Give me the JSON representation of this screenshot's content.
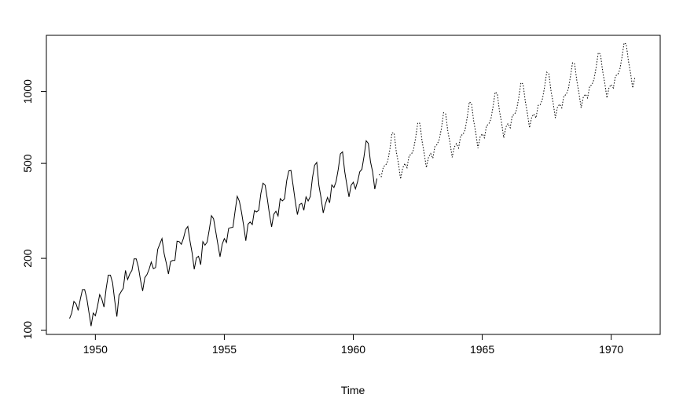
{
  "chart_data": {
    "type": "line",
    "title": "",
    "xlabel": "Time",
    "ylabel": "",
    "y_scale": "log",
    "xlim": [
      1948.1,
      1971.9
    ],
    "ylim": [
      96,
      1720
    ],
    "x_ticks": [
      1950,
      1955,
      1960,
      1965,
      1970
    ],
    "x_tick_labels": [
      "1950",
      "1955",
      "1960",
      "1965",
      "1970"
    ],
    "y_ticks": [
      100,
      200,
      500,
      1000
    ],
    "y_tick_labels": [
      "100",
      "200",
      "500",
      "1000"
    ],
    "grid": false,
    "legend": "none",
    "series": [
      {
        "style": "solid",
        "color": "#000000",
        "start": 1949.0,
        "frequency": 12,
        "values": [
          112,
          118,
          132,
          129,
          121,
          135,
          148,
          148,
          136,
          119,
          104,
          118,
          115,
          126,
          141,
          135,
          125,
          149,
          170,
          170,
          158,
          133,
          114,
          140,
          145,
          150,
          178,
          163,
          172,
          178,
          199,
          199,
          184,
          162,
          146,
          166,
          171,
          180,
          193,
          181,
          183,
          218,
          230,
          242,
          209,
          191,
          172,
          194,
          196,
          196,
          236,
          235,
          229,
          243,
          264,
          272,
          237,
          211,
          180,
          201,
          204,
          188,
          235,
          227,
          234,
          264,
          302,
          293,
          259,
          229,
          203,
          229,
          242,
          233,
          267,
          269,
          270,
          315,
          364,
          347,
          312,
          274,
          237,
          278,
          284,
          277,
          317,
          313,
          318,
          374,
          413,
          405,
          355,
          306,
          271,
          306,
          315,
          301,
          356,
          348,
          355,
          422,
          465,
          467,
          404,
          347,
          305,
          336,
          340,
          318,
          362,
          348,
          363,
          435,
          491,
          505,
          404,
          359,
          310,
          337,
          360,
          342,
          406,
          396,
          420,
          472,
          548,
          559,
          463,
          407,
          362,
          405,
          417,
          391,
          419,
          461,
          472,
          535,
          622,
          606,
          508,
          461,
          390,
          432
        ]
      },
      {
        "style": "dotted",
        "color": "#000000",
        "start": 1961.0,
        "frequency": 12,
        "values": [
          450,
          440,
          484,
          490,
          510,
          570,
          672,
          670,
          560,
          500,
          430,
          478,
          500,
          480,
          540,
          545,
          570,
          640,
          740,
          735,
          620,
          550,
          480,
          530,
          550,
          525,
          590,
          600,
          630,
          700,
          815,
          805,
          680,
          610,
          530,
          585,
          605,
          580,
          655,
          660,
          690,
          780,
          905,
          890,
          755,
          670,
          580,
          645,
          665,
          640,
          720,
          730,
          765,
          860,
          995,
          980,
          830,
          740,
          640,
          710,
          735,
          705,
          795,
          800,
          840,
          945,
          1090,
          1075,
          915,
          810,
          705,
          780,
          805,
          775,
          875,
          880,
          930,
          1045,
          1205,
          1185,
          1005,
          895,
          775,
          860,
          885,
          855,
          960,
          970,
          1020,
          1150,
          1320,
          1305,
          1110,
          985,
          855,
          945,
          975,
          940,
          1055,
          1065,
          1125,
          1265,
          1455,
          1435,
          1220,
          1085,
          940,
          1040,
          1070,
          1035,
          1165,
          1175,
          1235,
          1390,
          1600,
          1580,
          1345,
          1195,
          1035,
          1145
        ]
      }
    ]
  }
}
